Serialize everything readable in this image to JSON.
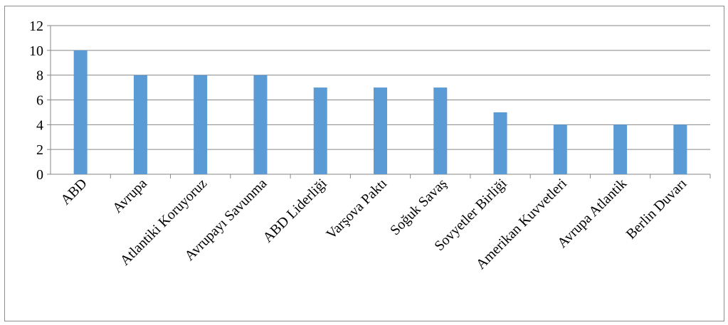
{
  "chart_data": {
    "type": "bar",
    "title": "",
    "xlabel": "",
    "ylabel": "",
    "ylim": [
      0,
      12
    ],
    "yticks": [
      0,
      2,
      4,
      6,
      8,
      10,
      12
    ],
    "grid": true,
    "legend": "none",
    "bar_color": "#5b9bd5",
    "categories": [
      "ABD",
      "Avrupa",
      "Atlantiki Koruyoruz",
      "Avrupayı Savunma",
      "ABD Liderliği",
      "Varşova Paktı",
      "Soğuk Savaş",
      "Sovyetler Birliği",
      "Amerikan Kuvvetleri",
      "Avrupa Atlantik",
      "Berlin Duvarı"
    ],
    "values": [
      10,
      8,
      8,
      8,
      7,
      7,
      7,
      5,
      4,
      4,
      4
    ]
  }
}
